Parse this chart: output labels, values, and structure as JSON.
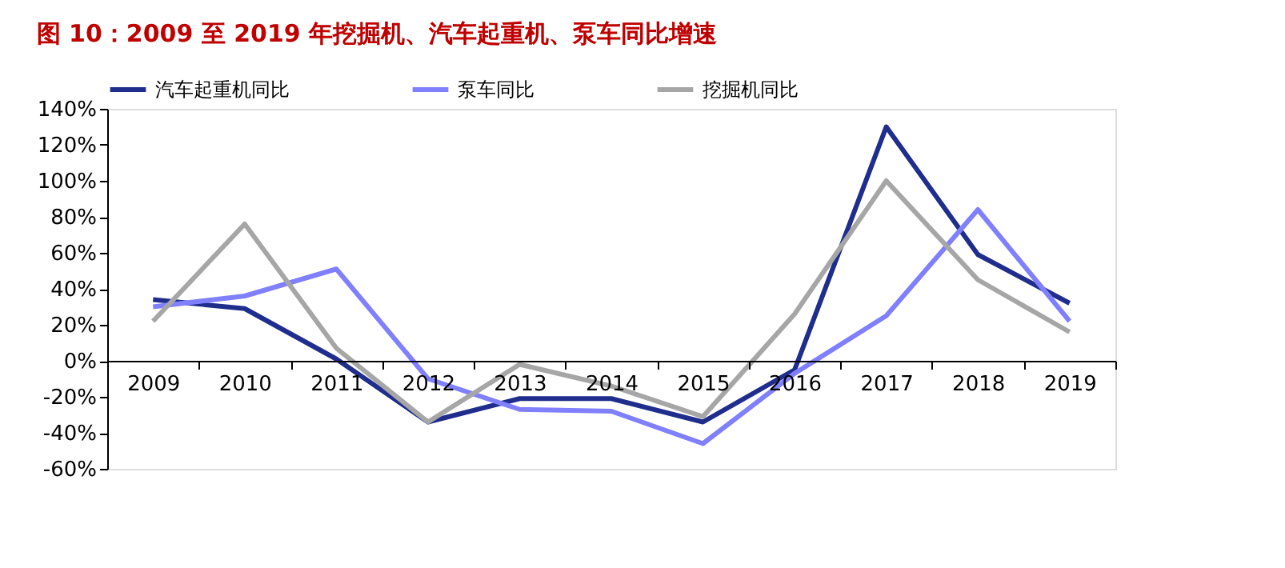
{
  "chart_data": {
    "type": "line",
    "title": "图 10：2009 至 2019 年挖掘机、汽车起重机、泵车同比增速",
    "categories": [
      "2009",
      "2010",
      "2011",
      "2012",
      "2013",
      "2014",
      "2015",
      "2016",
      "2017",
      "2018",
      "2019"
    ],
    "series": [
      {
        "name": "汽车起重机同比",
        "color": "#1f2d8c",
        "values": [
          34,
          29,
          1,
          -34,
          -21,
          -21,
          -34,
          -5,
          130,
          59,
          32
        ]
      },
      {
        "name": "泵车同比",
        "color": "#8080ff",
        "values": [
          30,
          36,
          51,
          -10,
          -27,
          -28,
          -46,
          -7,
          25,
          84,
          22
        ]
      },
      {
        "name": "挖掘机同比",
        "color": "#a6a6a6",
        "values": [
          22,
          76,
          7,
          -34,
          -2,
          -14,
          -31,
          26,
          100,
          45,
          16
        ]
      }
    ],
    "ylim": [
      -60,
      140
    ],
    "yticks": [
      {
        "value": -60,
        "label": "-60%"
      },
      {
        "value": -40,
        "label": "-40%"
      },
      {
        "value": -20,
        "label": "-20%"
      },
      {
        "value": 0,
        "label": "0%"
      },
      {
        "value": 20,
        "label": "20%"
      },
      {
        "value": 40,
        "label": "40%"
      },
      {
        "value": 60,
        "label": "60%"
      },
      {
        "value": 80,
        "label": "80%"
      },
      {
        "value": 100,
        "label": "100%"
      },
      {
        "value": 120,
        "label": "120%"
      },
      {
        "value": 140,
        "label": "140%"
      }
    ],
    "legend": "top",
    "grid": false,
    "marker": "none",
    "line_style": "solid"
  }
}
